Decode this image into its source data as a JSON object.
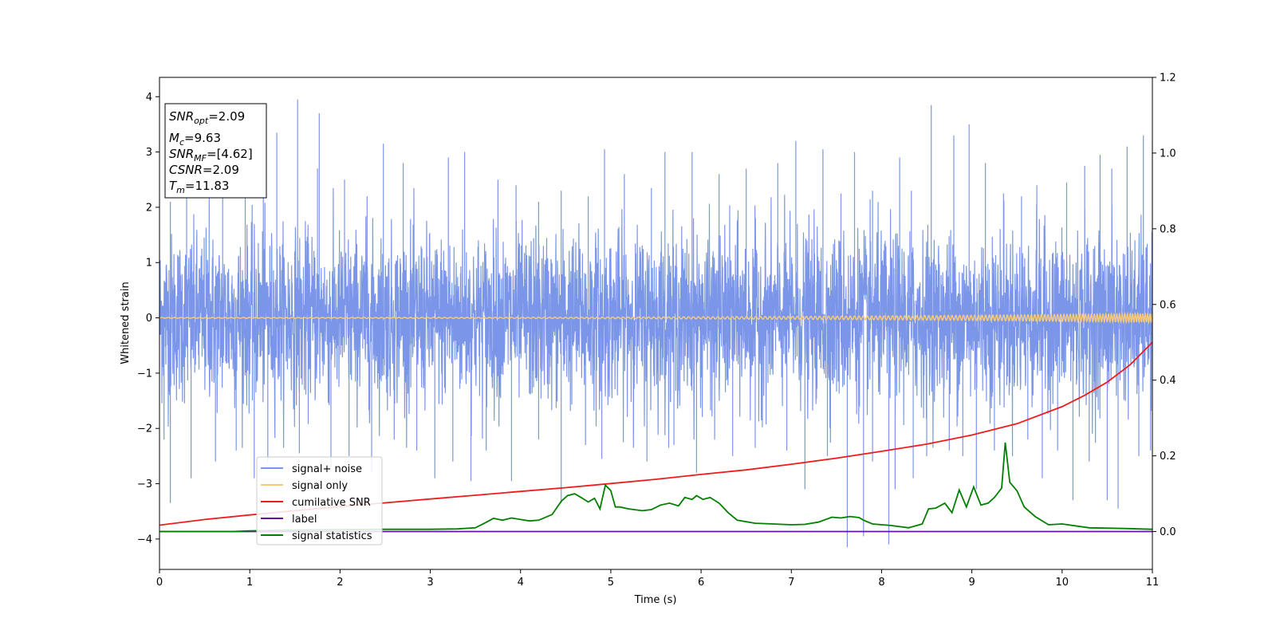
{
  "chart_data": {
    "type": "line",
    "xlabel": "Time (s)",
    "ylabel": "Whitened strain",
    "xlim": [
      0,
      11
    ],
    "ylim_left": [
      -4.55,
      4.35
    ],
    "ylim_right": [
      -0.1,
      1.2
    ],
    "x_ticks": [
      "0",
      "1",
      "2",
      "3",
      "4",
      "5",
      "6",
      "7",
      "8",
      "9",
      "10",
      "11"
    ],
    "y_ticks_left": [
      "4",
      "3",
      "2",
      "1",
      "0",
      "−1",
      "−2",
      "−3",
      "−4"
    ],
    "y_ticks_right": [
      "1.2",
      "1.0",
      "0.8",
      "0.6",
      "0.4",
      "0.2",
      "0.0"
    ],
    "legend_position": "lower-left",
    "info_box": {
      "snr_opt_base": "SNR",
      "snr_opt_sub": "opt",
      "snr_opt_val": "=2.09",
      "mc_base": "M",
      "mc_sub": "c",
      "mc_val": "=9.63",
      "snr_mf_base": "SNR",
      "snr_mf_sub": "MF",
      "snr_mf_val": "=[4.62]",
      "csnr_base": "CSNR",
      "csnr_val": "=2.09",
      "tm_base": "T",
      "tm_sub": "m",
      "tm_val": "=11.83"
    },
    "series": [
      {
        "name": "signal+ noise",
        "axis": "left",
        "color": "#7b96e8",
        "style": "noise band (approx. ±2.3 typical, extremes ~±4)",
        "spikes_up": [
          [
            0.12,
            2.1
          ],
          [
            0.3,
            2.4
          ],
          [
            0.55,
            2.3
          ],
          [
            0.7,
            2.5
          ],
          [
            0.95,
            2.9
          ],
          [
            1.15,
            3.1
          ],
          [
            1.3,
            3.35
          ],
          [
            1.53,
            3.95
          ],
          [
            1.75,
            2.7
          ],
          [
            1.77,
            3.7
          ],
          [
            2.05,
            2.5
          ],
          [
            2.3,
            2.2
          ],
          [
            2.48,
            3.15
          ],
          [
            2.7,
            2.8
          ],
          [
            3.2,
            2.9
          ],
          [
            3.38,
            3.0
          ],
          [
            3.75,
            2.5
          ],
          [
            3.95,
            2.4
          ],
          [
            4.2,
            2.1
          ],
          [
            4.45,
            2.3
          ],
          [
            4.75,
            2.2
          ],
          [
            4.93,
            3.05
          ],
          [
            5.15,
            2.6
          ],
          [
            5.45,
            2.35
          ],
          [
            5.6,
            3.0
          ],
          [
            5.9,
            3.0
          ],
          [
            6.2,
            2.6
          ],
          [
            6.5,
            2.7
          ],
          [
            6.85,
            2.8
          ],
          [
            7.05,
            3.2
          ],
          [
            7.35,
            3.05
          ],
          [
            7.55,
            2.25
          ],
          [
            7.7,
            3.0
          ],
          [
            7.9,
            2.3
          ],
          [
            8.2,
            2.9
          ],
          [
            8.33,
            2.3
          ],
          [
            8.55,
            3.85
          ],
          [
            8.8,
            3.3
          ],
          [
            8.97,
            3.5
          ],
          [
            9.15,
            2.8
          ],
          [
            9.35,
            2.25
          ],
          [
            9.55,
            2.2
          ],
          [
            9.72,
            2.4
          ],
          [
            10.05,
            2.45
          ],
          [
            10.25,
            2.75
          ],
          [
            10.42,
            2.95
          ],
          [
            10.55,
            2.7
          ],
          [
            10.72,
            3.1
          ],
          [
            10.9,
            3.3
          ],
          [
            11.0,
            3.2
          ]
        ],
        "spikes_down": [
          [
            0.05,
            -2.2
          ],
          [
            0.12,
            -3.35
          ],
          [
            0.35,
            -2.9
          ],
          [
            0.62,
            -2.6
          ],
          [
            0.85,
            -2.4
          ],
          [
            1.05,
            -2.9
          ],
          [
            1.2,
            -2.6
          ],
          [
            1.55,
            -2.45
          ],
          [
            1.9,
            -2.7
          ],
          [
            2.1,
            -2.5
          ],
          [
            2.35,
            -2.8
          ],
          [
            2.6,
            -2.2
          ],
          [
            2.85,
            -2.4
          ],
          [
            3.05,
            -2.9
          ],
          [
            3.25,
            -2.6
          ],
          [
            3.45,
            -2.95
          ],
          [
            3.62,
            -2.4
          ],
          [
            3.9,
            -2.95
          ],
          [
            4.2,
            -2.2
          ],
          [
            4.45,
            -3.35
          ],
          [
            4.72,
            -2.3
          ],
          [
            4.9,
            -2.55
          ],
          [
            5.25,
            -2.2
          ],
          [
            5.4,
            -2.6
          ],
          [
            5.7,
            -2.3
          ],
          [
            5.95,
            -2.8
          ],
          [
            6.15,
            -2.2
          ],
          [
            6.35,
            -2.5
          ],
          [
            6.6,
            -2.35
          ],
          [
            6.95,
            -2.4
          ],
          [
            7.15,
            -3.1
          ],
          [
            7.4,
            -2.5
          ],
          [
            7.62,
            -4.15
          ],
          [
            7.8,
            -3.95
          ],
          [
            7.9,
            -2.6
          ],
          [
            8.08,
            -4.1
          ],
          [
            8.15,
            -3.1
          ],
          [
            8.35,
            -2.9
          ],
          [
            8.5,
            -2.5
          ],
          [
            8.75,
            -2.4
          ],
          [
            8.9,
            -2.5
          ],
          [
            9.05,
            -3.1
          ],
          [
            9.25,
            -2.4
          ],
          [
            9.45,
            -2.5
          ],
          [
            9.62,
            -2.2
          ],
          [
            9.78,
            -2.9
          ],
          [
            9.95,
            -2.4
          ],
          [
            10.12,
            -3.3
          ],
          [
            10.3,
            -2.6
          ],
          [
            10.5,
            -3.3
          ],
          [
            10.62,
            -3.45
          ],
          [
            10.85,
            -2.5
          ],
          [
            10.98,
            -2.4
          ]
        ]
      },
      {
        "name": "signal only",
        "axis": "left",
        "color": "#f5c97a",
        "style": "chirp around 0, amplitude growing to ~0.08 at 11 s"
      },
      {
        "name": "cumilative SNR",
        "axis": "right",
        "color": "#ee1c1c",
        "x": [
          0,
          0.5,
          1,
          1.5,
          2,
          2.5,
          3,
          3.5,
          4,
          4.5,
          5,
          5.5,
          6,
          6.5,
          7,
          7.5,
          8,
          8.5,
          9,
          9.5,
          10,
          10.25,
          10.5,
          10.75,
          11
        ],
        "values": [
          0.017,
          0.032,
          0.044,
          0.055,
          0.066,
          0.076,
          0.086,
          0.096,
          0.106,
          0.116,
          0.127,
          0.138,
          0.151,
          0.163,
          0.178,
          0.194,
          0.212,
          0.231,
          0.255,
          0.285,
          0.33,
          0.36,
          0.395,
          0.44,
          0.5
        ]
      },
      {
        "name": "label",
        "axis": "right",
        "color": "#6a0dad",
        "x": [
          0,
          11
        ],
        "values": [
          0,
          0
        ]
      },
      {
        "name": "signal statistics",
        "axis": "right",
        "color": "#008000",
        "x": [
          0,
          0.8,
          1.0,
          1.5,
          2.0,
          2.5,
          3.0,
          3.3,
          3.5,
          3.6,
          3.7,
          3.8,
          3.9,
          4.0,
          4.1,
          4.2,
          4.35,
          4.45,
          4.52,
          4.6,
          4.67,
          4.75,
          4.82,
          4.88,
          4.94,
          5.0,
          5.05,
          5.1,
          5.2,
          5.35,
          5.45,
          5.55,
          5.65,
          5.75,
          5.82,
          5.9,
          5.95,
          6.02,
          6.1,
          6.2,
          6.3,
          6.4,
          6.6,
          6.8,
          7.0,
          7.15,
          7.3,
          7.45,
          7.55,
          7.65,
          7.75,
          7.8,
          7.9,
          8.1,
          8.3,
          8.45,
          8.52,
          8.6,
          8.7,
          8.78,
          8.86,
          8.94,
          9.02,
          9.1,
          9.18,
          9.25,
          9.33,
          9.37,
          9.42,
          9.5,
          9.58,
          9.7,
          9.85,
          10.0,
          10.3,
          10.7,
          11.0
        ],
        "values": [
          0.0,
          0.0,
          0.002,
          0.004,
          0.005,
          0.006,
          0.006,
          0.007,
          0.01,
          0.022,
          0.035,
          0.03,
          0.036,
          0.032,
          0.028,
          0.03,
          0.045,
          0.08,
          0.095,
          0.1,
          0.09,
          0.078,
          0.088,
          0.06,
          0.123,
          0.108,
          0.065,
          0.065,
          0.06,
          0.055,
          0.058,
          0.07,
          0.075,
          0.068,
          0.09,
          0.085,
          0.095,
          0.085,
          0.09,
          0.075,
          0.05,
          0.03,
          0.022,
          0.02,
          0.018,
          0.019,
          0.025,
          0.038,
          0.036,
          0.04,
          0.037,
          0.03,
          0.02,
          0.016,
          0.01,
          0.02,
          0.06,
          0.062,
          0.075,
          0.05,
          0.11,
          0.065,
          0.118,
          0.07,
          0.075,
          0.09,
          0.115,
          0.235,
          0.13,
          0.108,
          0.065,
          0.04,
          0.018,
          0.02,
          0.01,
          0.008,
          0.006
        ]
      }
    ]
  }
}
